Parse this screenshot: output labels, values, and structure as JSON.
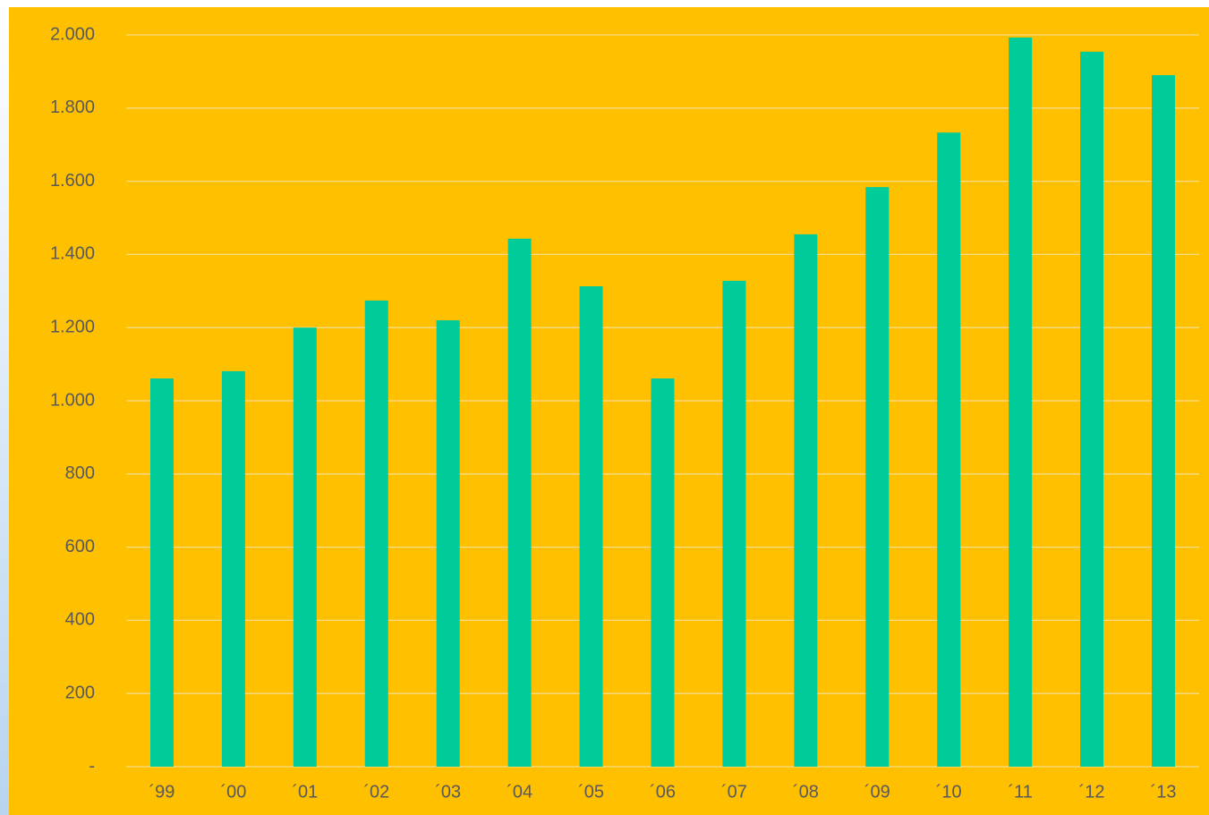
{
  "chart_data": {
    "type": "bar",
    "categories": [
      "´99",
      "´00",
      "´01",
      "´02",
      "´03",
      "´04",
      "´05",
      "´06",
      "´07",
      "´08",
      "´09",
      "´10",
      "´11",
      "´12",
      "´13"
    ],
    "values": [
      1061,
      1081,
      1200,
      1274,
      1220,
      1443,
      1313,
      1061,
      1328,
      1455,
      1584,
      1733,
      1993,
      1954,
      1890
    ],
    "color": "#00cc99",
    "ylim": [
      0,
      2000
    ],
    "yticks": [
      {
        "value": 0,
        "label": "-"
      },
      200,
      400,
      600,
      800,
      {
        "value": 1000,
        "label": "1.000"
      },
      {
        "value": 1200,
        "label": "1.200"
      },
      {
        "value": 1400,
        "label": "1.400"
      },
      {
        "value": 1600,
        "label": "1.600"
      },
      {
        "value": 1800,
        "label": "1.800"
      },
      {
        "value": 2000,
        "label": "2.000"
      }
    ],
    "grid": true
  }
}
